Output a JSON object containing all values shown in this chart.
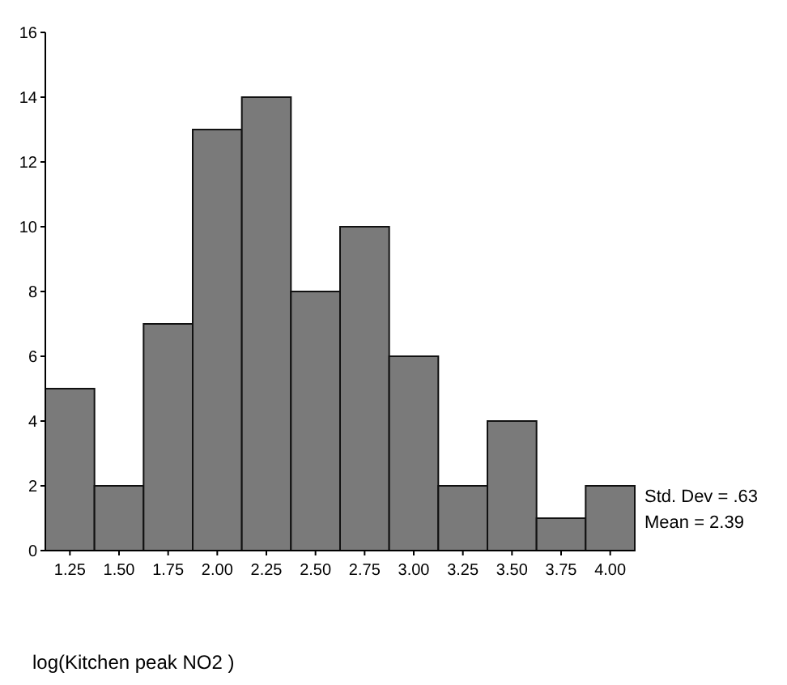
{
  "chart_data": {
    "type": "histogram",
    "xlabel": "log(Kitchen peak NO2 )",
    "bins": [
      1.125,
      1.375,
      1.625,
      1.875,
      2.125,
      2.375,
      2.625,
      2.875,
      3.125,
      3.375,
      3.625,
      3.875,
      4.125
    ],
    "values": [
      5,
      2,
      7,
      13,
      14,
      8,
      10,
      6,
      2,
      4,
      1,
      2
    ],
    "color": "#7a7a7a",
    "xlim": [
      1.125,
      4.125
    ],
    "xticks": [
      1.25,
      {
        "value": 1.5,
        "label": "1.50"
      },
      1.75,
      {
        "value": 2,
        "label": "2.00"
      },
      2.25,
      {
        "value": 2.5,
        "label": "2.50"
      },
      2.75,
      {
        "value": 3,
        "label": "3.00"
      },
      3.25,
      {
        "value": 3.5,
        "label": "3.50"
      },
      3.75,
      {
        "value": 4,
        "label": "4.00"
      }
    ],
    "ylim": [
      0,
      16
    ],
    "yticks": [
      0,
      2,
      4,
      6,
      8,
      10,
      12,
      14,
      16
    ],
    "annotations": [
      "Std. Dev = .63",
      "Mean = 2.39"
    ],
    "grid": false
  }
}
